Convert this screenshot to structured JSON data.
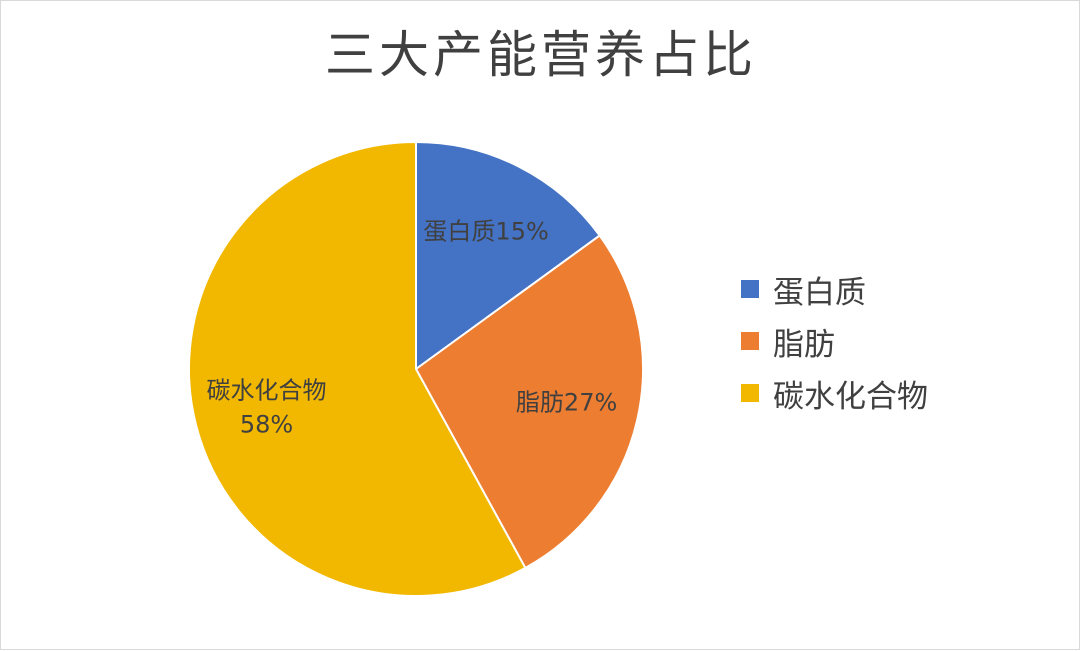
{
  "chart_data": {
    "type": "pie",
    "title": "三大产能营养占比",
    "categories": [
      "蛋白质",
      "脂肪",
      "碳水化合物"
    ],
    "values": [
      15,
      27,
      58
    ],
    "unit": "%",
    "colors": [
      "#4472C4",
      "#ED7D31",
      "#F2B800"
    ],
    "data_labels": [
      [
        "蛋白质15%"
      ],
      [
        "脂肪27%"
      ],
      [
        "碳水化合物",
        "58%"
      ]
    ],
    "legend": {
      "position": "right",
      "entries": [
        "蛋白质",
        "脂肪",
        "碳水化合物"
      ]
    }
  }
}
